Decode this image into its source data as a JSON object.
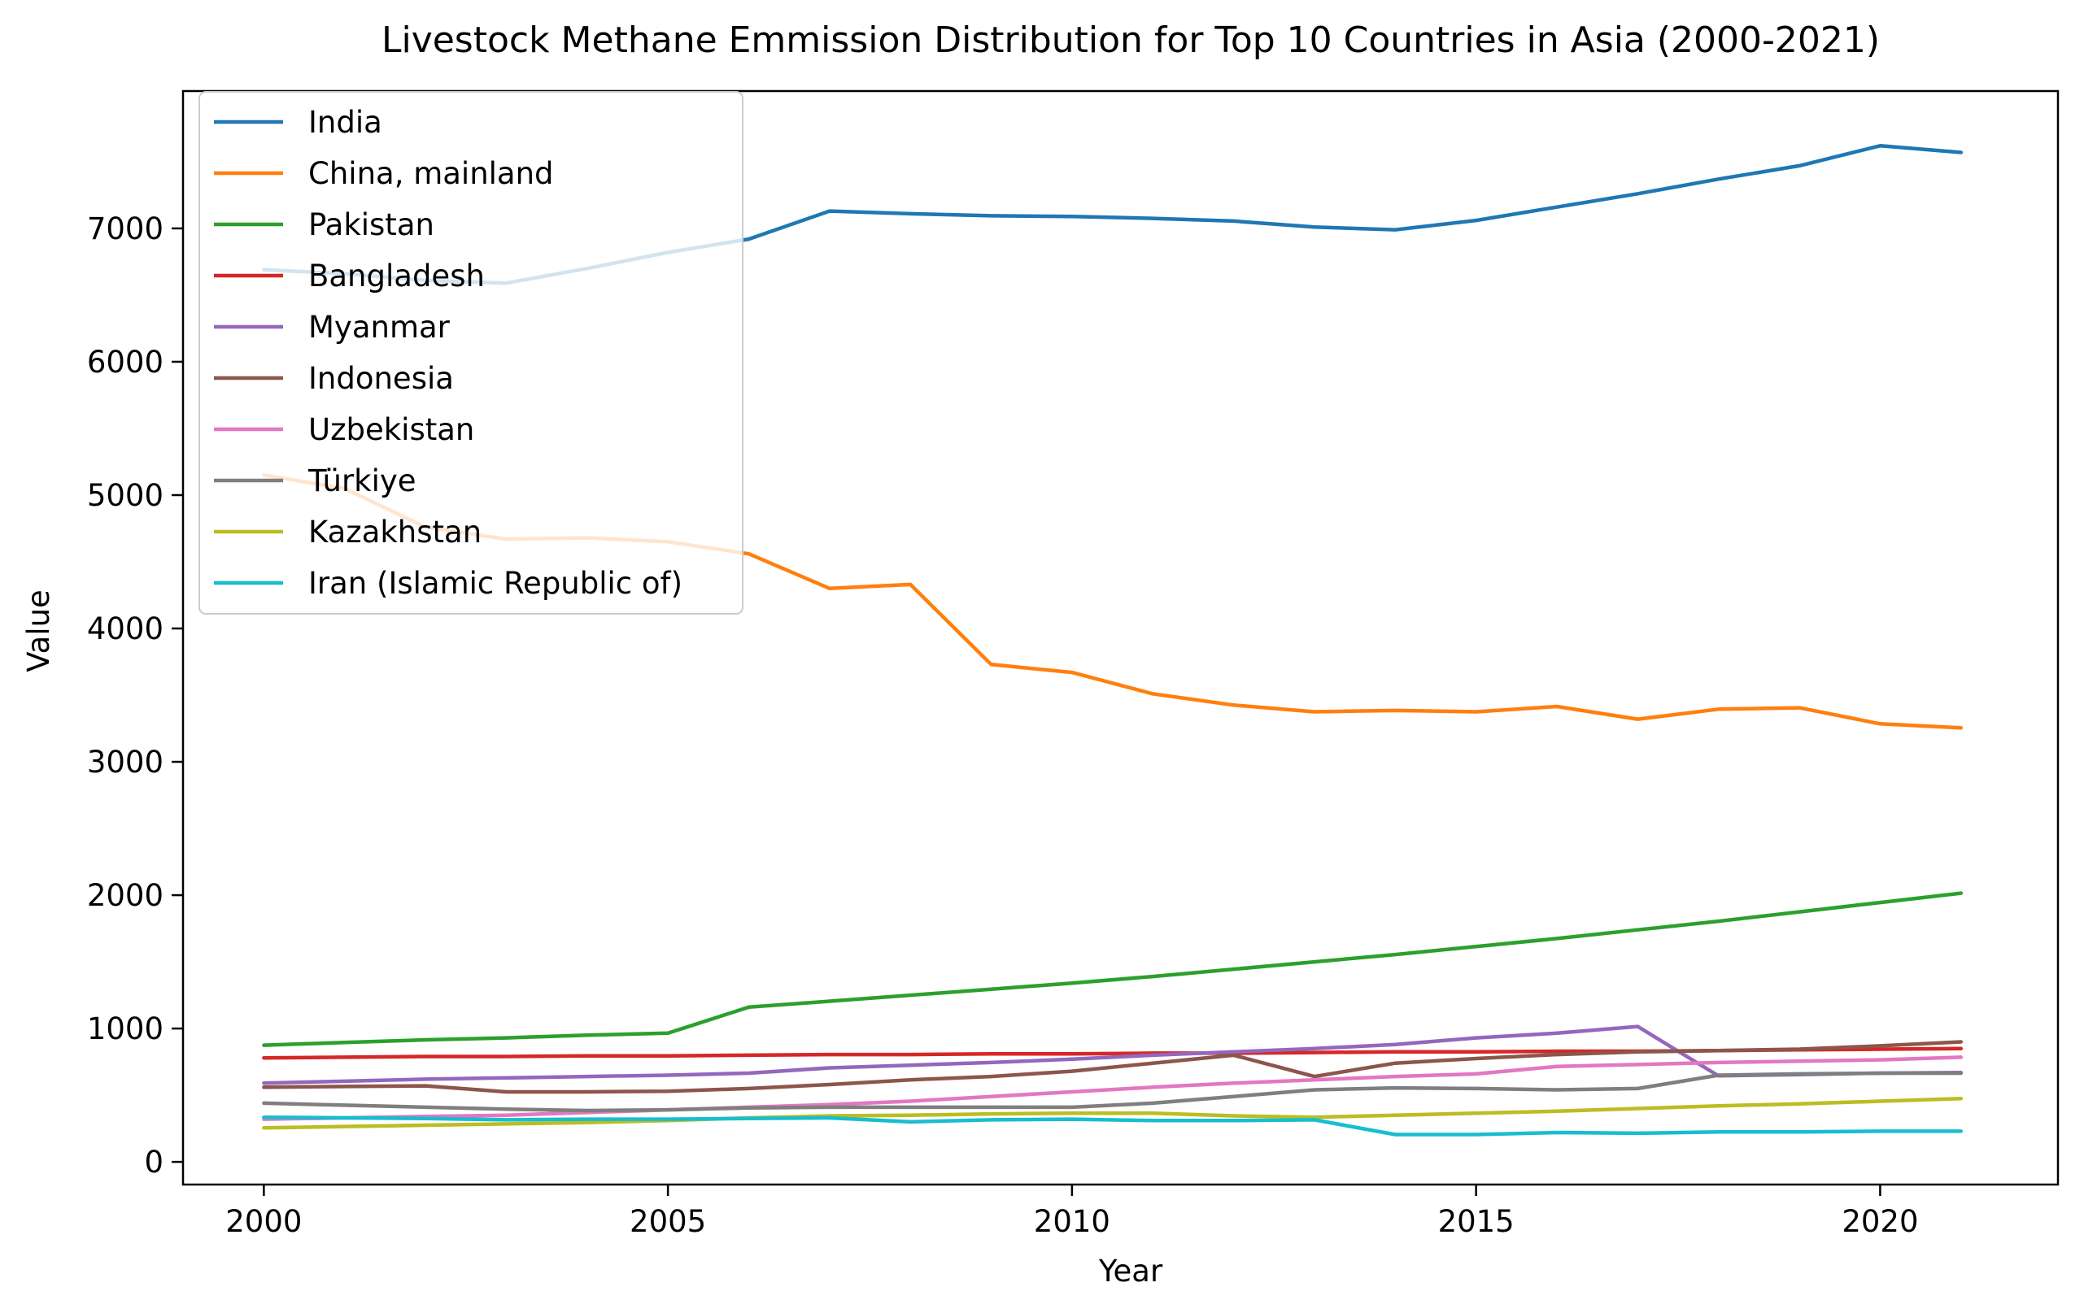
{
  "chart_data": {
    "type": "line",
    "title": "Livestock Methane Emmission Distribution for Top 10 Countries in Asia (2000-2021)",
    "xlabel": "Year",
    "ylabel": "Value",
    "xlim": [
      1999,
      2022.2
    ],
    "ylim": [
      -170,
      8030
    ],
    "x_ticks": [
      2000,
      2005,
      2010,
      2015,
      2020
    ],
    "y_ticks": [
      0,
      1000,
      2000,
      3000,
      4000,
      5000,
      6000,
      7000
    ],
    "grid": false,
    "legend_position": "upper-left",
    "x": [
      2000,
      2001,
      2002,
      2003,
      2004,
      2005,
      2006,
      2007,
      2008,
      2009,
      2010,
      2011,
      2012,
      2013,
      2014,
      2015,
      2016,
      2017,
      2018,
      2019,
      2020,
      2021
    ],
    "series": [
      {
        "name": "India",
        "color": "#1f77b4",
        "values": [
          6690,
          6660,
          6610,
          6590,
          6700,
          6820,
          6920,
          7130,
          7110,
          7095,
          7090,
          7075,
          7055,
          7010,
          6990,
          7060,
          7160,
          7260,
          7370,
          7470,
          7620,
          7570
        ]
      },
      {
        "name": "China, mainland",
        "color": "#ff7f0e",
        "values": [
          5150,
          5050,
          4760,
          4670,
          4680,
          4650,
          4560,
          4300,
          4330,
          3730,
          3670,
          3510,
          3425,
          3375,
          3385,
          3375,
          3415,
          3320,
          3395,
          3405,
          3285,
          3255
        ]
      },
      {
        "name": "Pakistan",
        "color": "#2ca02c",
        "values": [
          875,
          895,
          915,
          930,
          950,
          965,
          1160,
          1205,
          1250,
          1295,
          1340,
          1390,
          1445,
          1500,
          1555,
          1615,
          1675,
          1740,
          1805,
          1875,
          1945,
          2015
        ]
      },
      {
        "name": "Bangladesh",
        "color": "#d62728",
        "values": [
          780,
          785,
          790,
          790,
          795,
          795,
          800,
          805,
          805,
          810,
          810,
          815,
          815,
          820,
          825,
          825,
          830,
          830,
          835,
          840,
          845,
          850
        ]
      },
      {
        "name": "Myanmar",
        "color": "#9467bd",
        "values": [
          590,
          605,
          620,
          630,
          640,
          650,
          665,
          705,
          725,
          745,
          770,
          800,
          825,
          850,
          880,
          930,
          965,
          1015,
          645,
          655,
          665,
          670
        ]
      },
      {
        "name": "Indonesia",
        "color": "#8c564b",
        "values": [
          560,
          565,
          570,
          525,
          525,
          530,
          550,
          580,
          615,
          640,
          680,
          740,
          800,
          640,
          740,
          775,
          805,
          825,
          835,
          845,
          870,
          900
        ]
      },
      {
        "name": "Uzbekistan",
        "color": "#e377c2",
        "values": [
          320,
          330,
          340,
          350,
          370,
          390,
          410,
          430,
          455,
          490,
          525,
          560,
          590,
          615,
          640,
          660,
          715,
          730,
          745,
          755,
          765,
          785
        ]
      },
      {
        "name": "Türkiye",
        "color": "#7f7f7f",
        "values": [
          440,
          425,
          410,
          395,
          385,
          390,
          405,
          410,
          410,
          410,
          410,
          440,
          490,
          540,
          555,
          550,
          540,
          550,
          650,
          660,
          665,
          665
        ]
      },
      {
        "name": "Kazakhstan",
        "color": "#bcbd22",
        "values": [
          255,
          265,
          275,
          285,
          295,
          310,
          330,
          345,
          350,
          360,
          365,
          365,
          345,
          335,
          350,
          365,
          380,
          400,
          420,
          435,
          455,
          475
        ]
      },
      {
        "name": "Iran (Islamic Republic of)",
        "color": "#17becf",
        "values": [
          335,
          330,
          325,
          315,
          320,
          320,
          325,
          330,
          300,
          315,
          320,
          310,
          310,
          315,
          205,
          205,
          220,
          215,
          225,
          225,
          230,
          230
        ]
      }
    ]
  }
}
